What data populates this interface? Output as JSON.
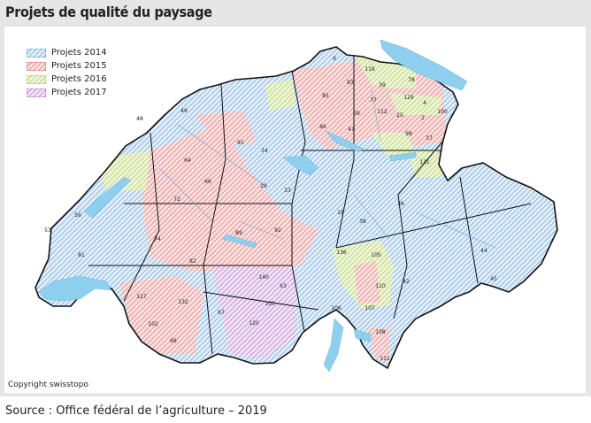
{
  "title": "Projets de qualité du paysage",
  "legend": [
    {
      "label": "Projets 2014",
      "color": "#5b9bd5"
    },
    {
      "label": "Projets 2015",
      "color": "#e06666"
    },
    {
      "label": "Projets 2016",
      "color": "#a8c84a"
    },
    {
      "label": "Projets 2017",
      "color": "#b06cc8"
    }
  ],
  "colors": {
    "lake": "#8ecfee",
    "border": "#111111",
    "background": "#e6e6e6"
  },
  "region_labels": [
    "9",
    "119",
    "83",
    "78",
    "39",
    "85",
    "77",
    "129",
    "4",
    "100",
    "69",
    "2",
    "112",
    "25",
    "47",
    "86",
    "98",
    "37",
    "131",
    "49",
    "48",
    "91",
    "64",
    "34",
    "66",
    "29",
    "33",
    "18",
    "92",
    "72",
    "74",
    "82",
    "89",
    "81",
    "56",
    "53",
    "36",
    "38",
    "44",
    "45",
    "136",
    "105",
    "110",
    "42",
    "106",
    "107",
    "108",
    "111",
    "132",
    "140",
    "67",
    "120",
    "103",
    "102",
    "127",
    "68",
    "63"
  ],
  "copyright": "Copyright swisstopo",
  "source": "Source : Office fédéral de l’agriculture – 2019"
}
